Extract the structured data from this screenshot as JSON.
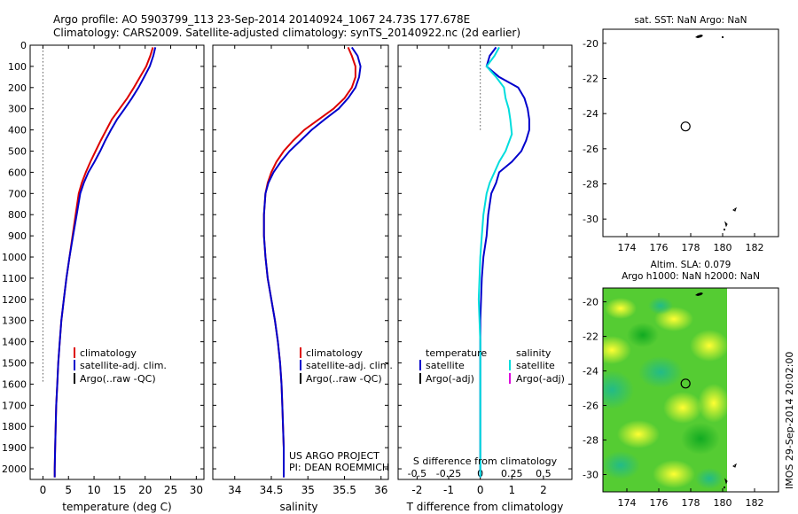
{
  "header": {
    "line1": "Argo profile: AO 5903799_113 23-Sep-2014 20140924_1067 24.73S 177.678E",
    "line2": "Climatology: CARS2009. Satellite-adjusted climatology: synTS_20140922.nc (2d earlier)"
  },
  "colors": {
    "climatology": "#dd0000",
    "satellite": "#0000cc",
    "argo": "#000000",
    "satellite_salinity": "#00dddd",
    "argo_salinity_adj": "#dd00dd"
  },
  "credit": "IMOS 29-Sep-2014 20:02:00",
  "project": {
    "line1": "US ARGO PROJECT",
    "line2": "PI: DEAN ROEMMICH"
  },
  "chart_data": [
    {
      "type": "line",
      "xlabel": "temperature (deg C)",
      "xlim": [
        -2.5,
        31.5
      ],
      "ylim": [
        0,
        2050
      ],
      "xticks": [
        0,
        5,
        10,
        15,
        20,
        25,
        30
      ],
      "yticks": [
        0,
        100,
        200,
        300,
        400,
        500,
        600,
        700,
        800,
        900,
        1000,
        1100,
        1200,
        1300,
        1400,
        1500,
        1600,
        1700,
        1800,
        1900,
        2000
      ],
      "legend": [
        "climatology",
        "satellite-adj. clim.",
        "Argo(..raw -QC)"
      ],
      "series": [
        {
          "name": "climatology",
          "color": "#dd0000",
          "points": [
            [
              21.5,
              10
            ],
            [
              21,
              50
            ],
            [
              20.2,
              100
            ],
            [
              19,
              150
            ],
            [
              17.8,
              200
            ],
            [
              16.5,
              250
            ],
            [
              15,
              300
            ],
            [
              13.5,
              350
            ],
            [
              12.4,
              400
            ],
            [
              11.3,
              450
            ],
            [
              10.3,
              500
            ],
            [
              9.3,
              550
            ],
            [
              8.4,
              600
            ],
            [
              7.6,
              650
            ],
            [
              7,
              700
            ],
            [
              6.4,
              800
            ],
            [
              5.8,
              900
            ],
            [
              5.2,
              1000
            ],
            [
              4.6,
              1100
            ],
            [
              4.1,
              1200
            ],
            [
              3.6,
              1300
            ],
            [
              3.3,
              1400
            ],
            [
              3,
              1500
            ],
            [
              2.8,
              1600
            ],
            [
              2.6,
              1700
            ],
            [
              2.5,
              1800
            ],
            [
              2.4,
              1900
            ],
            [
              2.3,
              2000
            ],
            [
              2.3,
              2040
            ]
          ]
        },
        {
          "name": "satellite-adj. clim.",
          "color": "#0000cc",
          "points": [
            [
              22,
              10
            ],
            [
              21.6,
              50
            ],
            [
              20.9,
              100
            ],
            [
              19.8,
              150
            ],
            [
              18.7,
              200
            ],
            [
              17.4,
              250
            ],
            [
              16,
              300
            ],
            [
              14.5,
              350
            ],
            [
              13.3,
              400
            ],
            [
              12.2,
              450
            ],
            [
              11.2,
              500
            ],
            [
              10.1,
              550
            ],
            [
              8.9,
              600
            ],
            [
              8,
              650
            ],
            [
              7.3,
              700
            ],
            [
              6.6,
              800
            ],
            [
              5.9,
              900
            ],
            [
              5.2,
              1000
            ],
            [
              4.6,
              1100
            ],
            [
              4.1,
              1200
            ],
            [
              3.6,
              1300
            ],
            [
              3.3,
              1400
            ],
            [
              3,
              1500
            ],
            [
              2.8,
              1600
            ],
            [
              2.6,
              1700
            ],
            [
              2.5,
              1800
            ],
            [
              2.4,
              1900
            ],
            [
              2.3,
              2000
            ],
            [
              2.3,
              2040
            ]
          ]
        },
        {
          "name": "Argo(..raw -QC)",
          "color": "#000000",
          "dotted": true,
          "points": [
            [
              0,
              10
            ],
            [
              0,
              1600
            ]
          ]
        }
      ]
    },
    {
      "type": "line",
      "xlabel": "salinity",
      "xlim": [
        33.7,
        36.1
      ],
      "ylim": [
        0,
        2050
      ],
      "xticks": [
        34,
        34.5,
        35,
        35.5,
        36
      ],
      "xticklabels": [
        "34",
        "34.5",
        "35",
        "35.5",
        "36"
      ],
      "legend": [
        "climatology",
        "satellite-adj. clim.",
        "Argo(..raw -QC)"
      ],
      "series": [
        {
          "name": "climatology",
          "color": "#dd0000",
          "points": [
            [
              35.55,
              10
            ],
            [
              35.6,
              50
            ],
            [
              35.65,
              100
            ],
            [
              35.65,
              150
            ],
            [
              35.6,
              200
            ],
            [
              35.5,
              250
            ],
            [
              35.35,
              300
            ],
            [
              35.15,
              350
            ],
            [
              34.95,
              400
            ],
            [
              34.8,
              450
            ],
            [
              34.67,
              500
            ],
            [
              34.57,
              550
            ],
            [
              34.5,
              600
            ],
            [
              34.45,
              650
            ],
            [
              34.42,
              700
            ],
            [
              34.4,
              800
            ],
            [
              34.4,
              900
            ],
            [
              34.42,
              1000
            ],
            [
              34.45,
              1100
            ],
            [
              34.5,
              1200
            ],
            [
              34.55,
              1300
            ],
            [
              34.59,
              1400
            ],
            [
              34.62,
              1500
            ],
            [
              34.64,
              1600
            ],
            [
              34.65,
              1700
            ],
            [
              34.66,
              1800
            ],
            [
              34.67,
              1900
            ],
            [
              34.67,
              2000
            ],
            [
              34.67,
              2040
            ]
          ]
        },
        {
          "name": "satellite-adj. clim.",
          "color": "#0000cc",
          "points": [
            [
              35.6,
              10
            ],
            [
              35.68,
              50
            ],
            [
              35.72,
              100
            ],
            [
              35.7,
              150
            ],
            [
              35.65,
              200
            ],
            [
              35.55,
              250
            ],
            [
              35.42,
              300
            ],
            [
              35.23,
              350
            ],
            [
              35.05,
              400
            ],
            [
              34.9,
              450
            ],
            [
              34.75,
              500
            ],
            [
              34.63,
              550
            ],
            [
              34.53,
              600
            ],
            [
              34.46,
              650
            ],
            [
              34.42,
              700
            ],
            [
              34.4,
              800
            ],
            [
              34.4,
              900
            ],
            [
              34.42,
              1000
            ],
            [
              34.45,
              1100
            ],
            [
              34.5,
              1200
            ],
            [
              34.55,
              1300
            ],
            [
              34.59,
              1400
            ],
            [
              34.62,
              1500
            ],
            [
              34.64,
              1600
            ],
            [
              34.65,
              1700
            ],
            [
              34.66,
              1800
            ],
            [
              34.67,
              1900
            ],
            [
              34.67,
              2000
            ],
            [
              34.67,
              2040
            ]
          ]
        }
      ]
    },
    {
      "type": "line",
      "xlabel": "T difference from climatology",
      "title": "S difference from climatology",
      "xlim": [
        -2.6,
        2.9
      ],
      "ylim": [
        0,
        2050
      ],
      "xticks": [
        -2,
        -1,
        0,
        1,
        2
      ],
      "s_ticklabels": [
        "-0.5",
        "-0.25",
        "0",
        "0.25",
        "0.5"
      ],
      "legend_temperature": [
        "temperature",
        "satellite",
        "Argo(-adj)"
      ],
      "legend_salinity": [
        "salinity",
        "satellite",
        "Argo(-adj)"
      ],
      "series": [
        {
          "name": "satellite temperature",
          "color": "#0000cc",
          "points": [
            [
              0.5,
              10
            ],
            [
              0.3,
              50
            ],
            [
              0.2,
              100
            ],
            [
              0.6,
              150
            ],
            [
              1.2,
              200
            ],
            [
              1.4,
              250
            ],
            [
              1.5,
              300
            ],
            [
              1.55,
              350
            ],
            [
              1.55,
              400
            ],
            [
              1.45,
              450
            ],
            [
              1.3,
              500
            ],
            [
              1,
              550
            ],
            [
              0.6,
              600
            ],
            [
              0.5,
              650
            ],
            [
              0.35,
              700
            ],
            [
              0.25,
              800
            ],
            [
              0.2,
              900
            ],
            [
              0.1,
              1000
            ],
            [
              0.05,
              1100
            ],
            [
              0,
              1300
            ],
            [
              0,
              2040
            ]
          ]
        },
        {
          "name": "satellite salinity",
          "color": "#00dddd",
          "points": [
            [
              0.6,
              10
            ],
            [
              0.45,
              50
            ],
            [
              0.2,
              100
            ],
            [
              0.5,
              150
            ],
            [
              0.75,
              200
            ],
            [
              0.8,
              250
            ],
            [
              0.9,
              300
            ],
            [
              0.95,
              350
            ],
            [
              1,
              420
            ],
            [
              0.8,
              500
            ],
            [
              0.6,
              550
            ],
            [
              0.45,
              600
            ],
            [
              0.3,
              650
            ],
            [
              0.2,
              700
            ],
            [
              0.1,
              800
            ],
            [
              0.05,
              900
            ],
            [
              0,
              1000
            ],
            [
              -0.05,
              1200
            ],
            [
              0,
              1400
            ],
            [
              0,
              2040
            ]
          ]
        },
        {
          "name": "zero",
          "color": "#000000",
          "dotted": true,
          "points": [
            [
              0,
              10
            ],
            [
              0,
              400
            ]
          ]
        }
      ]
    },
    {
      "type": "scatter",
      "title": "sat. SST: NaN Argo: NaN",
      "xlim": [
        172.5,
        183.5
      ],
      "ylim": [
        -31,
        -19.2
      ],
      "xticks": [
        174,
        176,
        178,
        180,
        182
      ],
      "yticks": [
        -20,
        -22,
        -24,
        -26,
        -28,
        -30
      ],
      "float_position": [
        177.678,
        -24.73
      ]
    },
    {
      "type": "heatmap",
      "title_line1": "Altim. SLA: 0.079",
      "title_line2": "Argo h1000: NaN h2000: NaN",
      "xlim": [
        172.5,
        183.5
      ],
      "ylim": [
        -31,
        -19.2
      ],
      "xticks": [
        174,
        176,
        178,
        180,
        182
      ],
      "yticks": [
        -20,
        -22,
        -24,
        -26,
        -28,
        -30
      ],
      "float_position": [
        177.678,
        -24.73
      ],
      "data_extent_lon": [
        172.5,
        180
      ]
    }
  ]
}
